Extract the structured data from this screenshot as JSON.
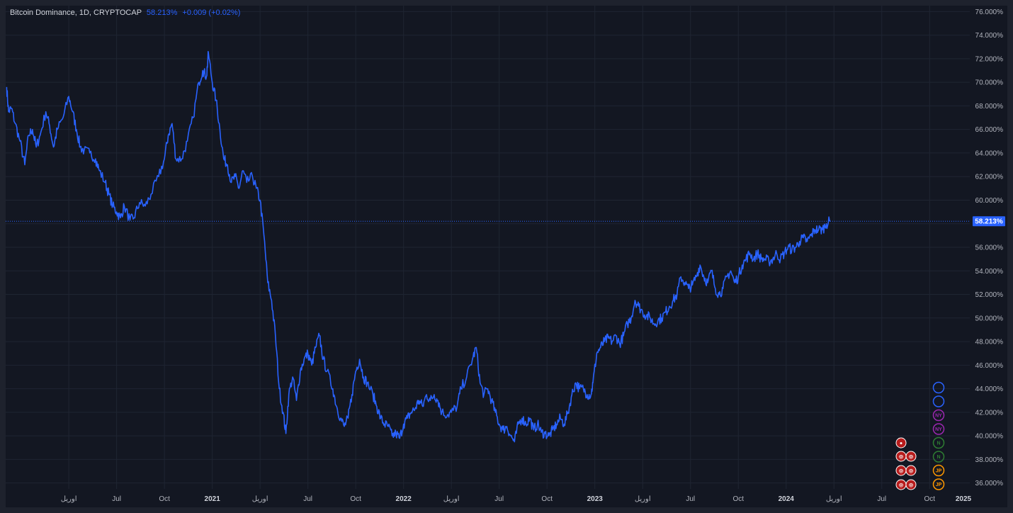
{
  "legend": {
    "symbol": "Bitcoin Dominance, 1D, CRYPTOCAP",
    "last": "58.213%",
    "change": "+0.009 (+0.02%)"
  },
  "colors": {
    "background": "#131722",
    "frame": "#1e222d",
    "grid": "#1f2532",
    "line": "#2962ff",
    "axis_text": "#b2b5be"
  },
  "price_tag": "58.213%",
  "chart_data": {
    "type": "line",
    "title": "Bitcoin Dominance, 1D, CRYPTOCAP",
    "xlabel": "",
    "ylabel": "",
    "x_range": [
      2019.92,
      2024.96
    ],
    "ylim": [
      35.5,
      76.5
    ],
    "y_ticks": [
      36,
      38,
      40,
      42,
      44,
      46,
      48,
      50,
      52,
      54,
      56,
      58,
      60,
      62,
      64,
      66,
      68,
      70,
      72,
      74,
      76
    ],
    "y_tick_labels": [
      "36.000%",
      "38.000%",
      "40.000%",
      "42.000%",
      "44.000%",
      "46.000%",
      "48.000%",
      "50.000%",
      "52.000%",
      "54.000%",
      "56.000%",
      "58.000%",
      "60.000%",
      "62.000%",
      "64.000%",
      "66.000%",
      "68.000%",
      "70.000%",
      "72.000%",
      "74.000%",
      "76.000%"
    ],
    "x_ticks": [
      {
        "t": 2020.25,
        "label": "اوریل",
        "bold": false
      },
      {
        "t": 2020.5,
        "label": "Jul",
        "bold": false
      },
      {
        "t": 2020.75,
        "label": "Oct",
        "bold": false
      },
      {
        "t": 2021.0,
        "label": "2021",
        "bold": true
      },
      {
        "t": 2021.25,
        "label": "اوریل",
        "bold": false
      },
      {
        "t": 2021.5,
        "label": "Jul",
        "bold": false
      },
      {
        "t": 2021.75,
        "label": "Oct",
        "bold": false
      },
      {
        "t": 2022.0,
        "label": "2022",
        "bold": true
      },
      {
        "t": 2022.25,
        "label": "اوریل",
        "bold": false
      },
      {
        "t": 2022.5,
        "label": "Jul",
        "bold": false
      },
      {
        "t": 2022.75,
        "label": "Oct",
        "bold": false
      },
      {
        "t": 2023.0,
        "label": "2023",
        "bold": true
      },
      {
        "t": 2023.25,
        "label": "اوریل",
        "bold": false
      },
      {
        "t": 2023.5,
        "label": "Jul",
        "bold": false
      },
      {
        "t": 2023.75,
        "label": "Oct",
        "bold": false
      },
      {
        "t": 2024.0,
        "label": "2024",
        "bold": true
      },
      {
        "t": 2024.25,
        "label": "اوریل",
        "bold": false
      },
      {
        "t": 2024.5,
        "label": "Jul",
        "bold": false
      },
      {
        "t": 2024.75,
        "label": "Oct",
        "bold": false
      },
      {
        "t": 2025.0,
        "label": "2025",
        "bold": true
      }
    ],
    "grid": true,
    "last_value": 58.213,
    "series": [
      {
        "points": [
          [
            2019.925,
            69.6
          ],
          [
            2019.935,
            67.5
          ],
          [
            2019.95,
            67.8
          ],
          [
            2019.97,
            66.5
          ],
          [
            2019.995,
            65.0
          ],
          [
            2020.02,
            63.0
          ],
          [
            2020.04,
            65.5
          ],
          [
            2020.06,
            66.0
          ],
          [
            2020.08,
            64.5
          ],
          [
            2020.1,
            65.5
          ],
          [
            2020.13,
            67.5
          ],
          [
            2020.15,
            66.3
          ],
          [
            2020.17,
            64.5
          ],
          [
            2020.19,
            66.0
          ],
          [
            2020.22,
            67.0
          ],
          [
            2020.25,
            68.8
          ],
          [
            2020.27,
            67.5
          ],
          [
            2020.29,
            66.0
          ],
          [
            2020.31,
            64.5
          ],
          [
            2020.33,
            64.2
          ],
          [
            2020.36,
            64.0
          ],
          [
            2020.39,
            63.5
          ],
          [
            2020.41,
            62.5
          ],
          [
            2020.44,
            61.5
          ],
          [
            2020.46,
            60.5
          ],
          [
            2020.48,
            59.5
          ],
          [
            2020.5,
            59.0
          ],
          [
            2020.52,
            58.5
          ],
          [
            2020.54,
            59.5
          ],
          [
            2020.57,
            58.3
          ],
          [
            2020.59,
            58.5
          ],
          [
            2020.62,
            59.8
          ],
          [
            2020.65,
            59.5
          ],
          [
            2020.68,
            60.5
          ],
          [
            2020.72,
            62.0
          ],
          [
            2020.75,
            63.5
          ],
          [
            2020.77,
            65.5
          ],
          [
            2020.79,
            66.5
          ],
          [
            2020.81,
            63.5
          ],
          [
            2020.84,
            63.5
          ],
          [
            2020.87,
            65.0
          ],
          [
            2020.9,
            67.0
          ],
          [
            2020.93,
            70.0
          ],
          [
            2020.95,
            71.0
          ],
          [
            2020.97,
            70.5
          ],
          [
            2020.98,
            72.5
          ],
          [
            2021.0,
            70.0
          ],
          [
            2021.02,
            68.5
          ],
          [
            2021.04,
            66.0
          ],
          [
            2021.06,
            63.5
          ],
          [
            2021.08,
            63.0
          ],
          [
            2021.1,
            61.5
          ],
          [
            2021.12,
            62.0
          ],
          [
            2021.14,
            61.0
          ],
          [
            2021.16,
            62.5
          ],
          [
            2021.18,
            61.5
          ],
          [
            2021.21,
            62.0
          ],
          [
            2021.23,
            61.0
          ],
          [
            2021.25,
            60.0
          ],
          [
            2021.27,
            57.0
          ],
          [
            2021.29,
            53.0
          ],
          [
            2021.31,
            51.5
          ],
          [
            2021.33,
            48.5
          ],
          [
            2021.35,
            44.0
          ],
          [
            2021.37,
            42.0
          ],
          [
            2021.385,
            40.2
          ],
          [
            2021.4,
            43.5
          ],
          [
            2021.42,
            45.0
          ],
          [
            2021.44,
            43.0
          ],
          [
            2021.46,
            45.5
          ],
          [
            2021.48,
            46.5
          ],
          [
            2021.5,
            47.0
          ],
          [
            2021.52,
            46.0
          ],
          [
            2021.54,
            47.5
          ],
          [
            2021.56,
            48.5
          ],
          [
            2021.58,
            46.5
          ],
          [
            2021.6,
            45.5
          ],
          [
            2021.63,
            44.0
          ],
          [
            2021.65,
            42.5
          ],
          [
            2021.67,
            41.5
          ],
          [
            2021.69,
            40.8
          ],
          [
            2021.71,
            41.5
          ],
          [
            2021.73,
            43.5
          ],
          [
            2021.75,
            45.5
          ],
          [
            2021.77,
            46.5
          ],
          [
            2021.79,
            45.0
          ],
          [
            2021.81,
            44.5
          ],
          [
            2021.84,
            43.5
          ],
          [
            2021.86,
            42.5
          ],
          [
            2021.88,
            41.5
          ],
          [
            2021.9,
            41.0
          ],
          [
            2021.92,
            40.8
          ],
          [
            2021.94,
            40.0
          ],
          [
            2021.96,
            40.2
          ],
          [
            2021.98,
            39.8
          ],
          [
            2022.0,
            41.0
          ],
          [
            2022.02,
            41.5
          ],
          [
            2022.04,
            42.0
          ],
          [
            2022.06,
            42.3
          ],
          [
            2022.08,
            43.0
          ],
          [
            2022.1,
            42.5
          ],
          [
            2022.12,
            43.5
          ],
          [
            2022.14,
            43.0
          ],
          [
            2022.16,
            43.5
          ],
          [
            2022.18,
            43.0
          ],
          [
            2022.2,
            42.0
          ],
          [
            2022.23,
            41.8
          ],
          [
            2022.25,
            42.0
          ],
          [
            2022.28,
            42.5
          ],
          [
            2022.3,
            44.0
          ],
          [
            2022.33,
            45.0
          ],
          [
            2022.36,
            46.5
          ],
          [
            2022.38,
            47.5
          ],
          [
            2022.4,
            44.5
          ],
          [
            2022.42,
            43.5
          ],
          [
            2022.44,
            44.0
          ],
          [
            2022.46,
            43.0
          ],
          [
            2022.48,
            42.0
          ],
          [
            2022.5,
            41.0
          ],
          [
            2022.52,
            40.5
          ],
          [
            2022.54,
            40.8
          ],
          [
            2022.56,
            40.0
          ],
          [
            2022.58,
            39.5
          ],
          [
            2022.6,
            41.0
          ],
          [
            2022.62,
            41.5
          ],
          [
            2022.64,
            41.0
          ],
          [
            2022.66,
            41.5
          ],
          [
            2022.68,
            40.5
          ],
          [
            2022.7,
            41.0
          ],
          [
            2022.72,
            40.3
          ],
          [
            2022.74,
            40.2
          ],
          [
            2022.76,
            40.0
          ],
          [
            2022.78,
            40.5
          ],
          [
            2022.8,
            41.0
          ],
          [
            2022.82,
            41.5
          ],
          [
            2022.84,
            41.0
          ],
          [
            2022.86,
            42.0
          ],
          [
            2022.88,
            43.5
          ],
          [
            2022.9,
            44.5
          ],
          [
            2022.92,
            44.0
          ],
          [
            2022.94,
            44.0
          ],
          [
            2022.96,
            43.5
          ],
          [
            2022.98,
            43.5
          ],
          [
            2022.99,
            44.5
          ],
          [
            2023.01,
            47.0
          ],
          [
            2023.03,
            47.5
          ],
          [
            2023.05,
            48.0
          ],
          [
            2023.07,
            48.3
          ],
          [
            2023.09,
            48.0
          ],
          [
            2023.11,
            48.5
          ],
          [
            2023.13,
            47.8
          ],
          [
            2023.15,
            48.5
          ],
          [
            2023.17,
            49.5
          ],
          [
            2023.19,
            50.0
          ],
          [
            2023.21,
            51.5
          ],
          [
            2023.23,
            51.0
          ],
          [
            2023.25,
            50.5
          ],
          [
            2023.27,
            50.2
          ],
          [
            2023.29,
            50.0
          ],
          [
            2023.31,
            49.5
          ],
          [
            2023.33,
            49.8
          ],
          [
            2023.35,
            50.0
          ],
          [
            2023.37,
            50.5
          ],
          [
            2023.39,
            51.0
          ],
          [
            2023.41,
            51.5
          ],
          [
            2023.43,
            52.0
          ],
          [
            2023.45,
            53.5
          ],
          [
            2023.47,
            53.0
          ],
          [
            2023.49,
            52.5
          ],
          [
            2023.51,
            52.8
          ],
          [
            2023.53,
            53.5
          ],
          [
            2023.55,
            54.5
          ],
          [
            2023.57,
            53.5
          ],
          [
            2023.59,
            53.0
          ],
          [
            2023.61,
            54.0
          ],
          [
            2023.63,
            52.5
          ],
          [
            2023.65,
            52.0
          ],
          [
            2023.67,
            52.5
          ],
          [
            2023.69,
            53.5
          ],
          [
            2023.71,
            54.0
          ],
          [
            2023.73,
            53.0
          ],
          [
            2023.75,
            53.5
          ],
          [
            2023.77,
            54.5
          ],
          [
            2023.79,
            55.0
          ],
          [
            2023.81,
            55.5
          ],
          [
            2023.83,
            55.0
          ],
          [
            2023.85,
            55.5
          ],
          [
            2023.87,
            55.0
          ],
          [
            2023.89,
            55.0
          ],
          [
            2023.91,
            54.8
          ],
          [
            2023.93,
            55.0
          ],
          [
            2023.95,
            55.5
          ],
          [
            2023.97,
            55.0
          ],
          [
            2023.99,
            55.5
          ],
          [
            2024.01,
            56.0
          ],
          [
            2024.03,
            55.8
          ],
          [
            2024.05,
            56.0
          ],
          [
            2024.07,
            56.5
          ],
          [
            2024.09,
            56.8
          ],
          [
            2024.11,
            56.5
          ],
          [
            2024.13,
            57.0
          ],
          [
            2024.15,
            57.5
          ],
          [
            2024.17,
            57.5
          ],
          [
            2024.19,
            57.5
          ],
          [
            2024.21,
            58.0
          ],
          [
            2024.23,
            58.2
          ]
        ]
      }
    ]
  },
  "events_left": [
    {
      "row": 0,
      "glyphs": [
        "●"
      ]
    },
    {
      "row": 1,
      "glyphs": [
        "◎",
        "◎"
      ]
    },
    {
      "row": 2,
      "glyphs": [
        "◎",
        "◎"
      ]
    },
    {
      "row": 3,
      "glyphs": [
        "◎",
        "◎"
      ]
    }
  ],
  "events_right": [
    {
      "glyph": "",
      "color": "#2962ff"
    },
    {
      "glyph": "",
      "color": "#2962ff"
    },
    {
      "glyph": "NY",
      "color": "#9c27b0"
    },
    {
      "glyph": "NY",
      "color": "#9c27b0"
    },
    {
      "glyph": "N",
      "color": "#2e7d32"
    },
    {
      "glyph": "N",
      "color": "#2e7d32"
    },
    {
      "glyph": "JP",
      "color": "#ff9800"
    },
    {
      "glyph": "JP",
      "color": "#ff9800"
    }
  ]
}
